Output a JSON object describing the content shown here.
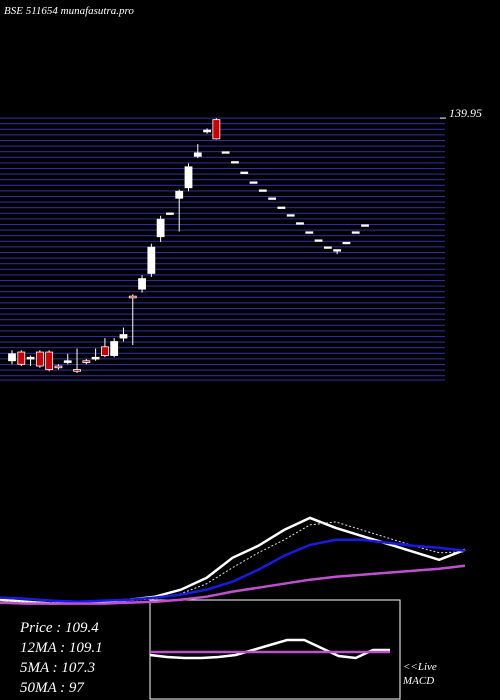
{
  "chart_data": [
    {
      "type": "candlestick",
      "title": "BSE 511654  munafasutra.pro",
      "open": [
        70.5,
        73,
        71,
        73,
        73,
        69,
        70,
        68,
        70.5,
        71,
        74.5,
        72,
        77,
        89,
        91,
        95.5,
        106,
        112.8,
        117,
        120,
        129,
        136,
        139.5,
        130.3,
        127.5,
        124.5,
        121.7,
        119.4,
        117.1,
        114.5,
        112.3,
        110,
        107.4,
        105.1,
        103.1,
        102.3,
        104.4,
        107.4,
        109.4
      ],
      "high": [
        73.5,
        73.5,
        72,
        73.5,
        73.5,
        69.5,
        72.5,
        74,
        71,
        74,
        77,
        77,
        80,
        89.5,
        95,
        104,
        112,
        112.8,
        119.5,
        127,
        132.5,
        137,
        139.9,
        130.3,
        127.5,
        124.5,
        121.7,
        119.4,
        117.1,
        114.5,
        112.3,
        110,
        107.4,
        105.1,
        103.1,
        102.3,
        104.4,
        107.4,
        109.4
      ],
      "low": [
        69.5,
        69,
        69,
        68.5,
        67.5,
        68,
        69.5,
        67,
        69.5,
        70.5,
        71.5,
        71.5,
        76,
        75,
        90,
        94.5,
        104.5,
        112.8,
        107.5,
        119,
        128.5,
        135.5,
        133.8,
        130.3,
        127.5,
        124.5,
        121.7,
        119.4,
        117.1,
        114.5,
        112.3,
        110,
        107.4,
        105.1,
        103.1,
        101,
        104.4,
        107.4,
        109.4
      ],
      "close": [
        72.5,
        69.5,
        71.5,
        69,
        68,
        68.5,
        70.5,
        67.5,
        70,
        71.5,
        72,
        76,
        78,
        88.5,
        94,
        103,
        111,
        112.8,
        119,
        126,
        130,
        136.5,
        134,
        130.3,
        127.5,
        124.5,
        121.7,
        119.4,
        117.1,
        114.5,
        112.3,
        110,
        107.4,
        105.1,
        103.1,
        102.3,
        104.4,
        107.4,
        109.4
      ],
      "up_color": "#ffffff",
      "down_color": "#cc0000",
      "ylim": [
        65,
        141.4
      ],
      "yticks": [
        139.95
      ]
    },
    {
      "type": "line",
      "series": [
        {
          "color": "#ffffff",
          "values": [
            70,
            68.3,
            66.7,
            67.5,
            68.3,
            70,
            72.5,
            78.3,
            88.3,
            105,
            115,
            128.3,
            138.3,
            130,
            123.3,
            116.7,
            110,
            103.3,
            111.7
          ]
        },
        {
          "color": "#dddddd",
          "values": [
            69.2,
            68.3,
            67.5,
            67.5,
            68.3,
            69.2,
            70.8,
            75,
            83.3,
            96.7,
            109.2,
            120,
            132.5,
            135,
            128.3,
            121.7,
            115,
            109.2,
            110
          ]
        },
        {
          "color": "#1a1ae6",
          "values": [
            71.7,
            70.8,
            69.2,
            68.3,
            69.2,
            70,
            71.7,
            74.2,
            78.3,
            85,
            95,
            106.7,
            115.8,
            120,
            120,
            117.5,
            115,
            113.3,
            110.8
          ]
        },
        {
          "color": "#c050d0",
          "values": [
            67.5,
            66.7,
            66.7,
            66.7,
            66.7,
            67.5,
            68.3,
            70,
            72.5,
            76.7,
            80,
            83.3,
            86.7,
            89.2,
            90.8,
            92.5,
            94.2,
            95.8,
            98.3
          ]
        }
      ],
      "ylim": [
        53,
        170
      ],
      "annotations": [
        "Price   : 109.4",
        "12MA : 109.1",
        "5MA : 107.3",
        "50MA : 97"
      ]
    },
    {
      "type": "line",
      "title": "<<Live",
      "subtitle": "MACD",
      "series": [
        {
          "color": "#ffffff",
          "values": [
            -0.5,
            -0.7,
            -0.8,
            -0.8,
            -0.7,
            -0.5,
            0,
            0.5,
            1,
            1,
            0.2,
            -0.6,
            -0.8,
            0,
            0
          ]
        },
        {
          "color": "#c050d0",
          "values": [
            -0.2,
            -0.2,
            -0.2,
            -0.2,
            -0.2,
            -0.2,
            -0.2,
            -0.2,
            -0.2,
            -0.2,
            -0.2,
            -0.2,
            -0.2,
            -0.2,
            -0.2
          ]
        }
      ],
      "ylim": [
        -5,
        5
      ]
    }
  ]
}
